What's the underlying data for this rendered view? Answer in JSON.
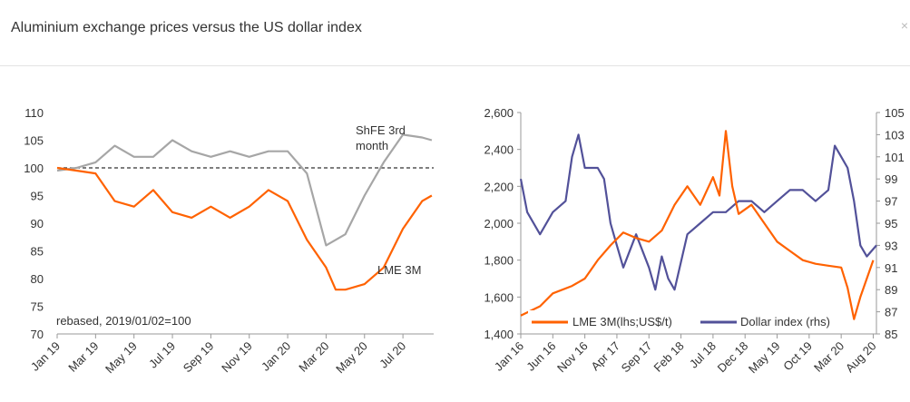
{
  "page": {
    "title": "Aluminium exchange prices versus the US dollar index",
    "close_label": "×"
  },
  "chart_data": [
    {
      "type": "line",
      "title": "",
      "x_tick_labels": [
        "Jan 19",
        "Mar 19",
        "May 19",
        "Jul 19",
        "Sep 19",
        "Nov 19",
        "Jan 20",
        "Mar 20",
        "May 20",
        "Jul 20"
      ],
      "x_range": [
        0,
        19.6
      ],
      "ylim": [
        70,
        110
      ],
      "y_ticks": [
        70,
        75,
        80,
        85,
        90,
        95,
        100,
        105,
        110
      ],
      "annotation": "rebased, 2019/01/02=100",
      "reference_line": 100,
      "series": [
        {
          "name": "ShFE 3rd month",
          "color": "#a6a6a6",
          "label_line1": "ShFE 3rd",
          "label_line2": "month",
          "points": [
            [
              0,
              99.5
            ],
            [
              1,
              100
            ],
            [
              2,
              101
            ],
            [
              3,
              104
            ],
            [
              4,
              102
            ],
            [
              5,
              102
            ],
            [
              6,
              105
            ],
            [
              7,
              103
            ],
            [
              8,
              102
            ],
            [
              9,
              103
            ],
            [
              10,
              102
            ],
            [
              11,
              103
            ],
            [
              12,
              103
            ],
            [
              13,
              99
            ],
            [
              14,
              86
            ],
            [
              15,
              88
            ],
            [
              16,
              95
            ],
            [
              17,
              101
            ],
            [
              18,
              106
            ],
            [
              19,
              105.5
            ],
            [
              19.5,
              105
            ]
          ]
        },
        {
          "name": "LME 3M",
          "color": "#ff6200",
          "label": "LME 3M",
          "points": [
            [
              0,
              100
            ],
            [
              1,
              99.5
            ],
            [
              2,
              99
            ],
            [
              3,
              94
            ],
            [
              4,
              93
            ],
            [
              5,
              96
            ],
            [
              6,
              92
            ],
            [
              7,
              91
            ],
            [
              8,
              93
            ],
            [
              9,
              91
            ],
            [
              10,
              93
            ],
            [
              11,
              96
            ],
            [
              12,
              94
            ],
            [
              13,
              87
            ],
            [
              14,
              82
            ],
            [
              14.5,
              78
            ],
            [
              15,
              78
            ],
            [
              16,
              79
            ],
            [
              17,
              82
            ],
            [
              18,
              89
            ],
            [
              19,
              94
            ],
            [
              19.5,
              95
            ]
          ]
        }
      ]
    },
    {
      "type": "line",
      "title": "",
      "x_tick_labels": [
        "Jan 16",
        "Jun 16",
        "Nov 16",
        "Apr 17",
        "Sep 17",
        "Feb 18",
        "Jul 18",
        "Dec 18",
        "May 19",
        "Oct 19",
        "Mar 20",
        "Aug 20"
      ],
      "x_range": [
        0,
        55.5
      ],
      "ylim_left": [
        1400,
        2600
      ],
      "y_ticks_left": [
        "1,400",
        "1,600",
        "1,800",
        "2,000",
        "2,200",
        "2,400",
        "2,600"
      ],
      "y_tick_values_left": [
        1400,
        1600,
        1800,
        2000,
        2200,
        2400,
        2600
      ],
      "ylim_right": [
        85,
        105
      ],
      "y_ticks_right": [
        85,
        87,
        89,
        91,
        93,
        95,
        97,
        99,
        101,
        103,
        105
      ],
      "series": [
        {
          "name": "LME 3M(lhs;US$/t)",
          "axis": "left",
          "color": "#ff6200",
          "points": [
            [
              0,
              1500
            ],
            [
              3,
              1550
            ],
            [
              5,
              1620
            ],
            [
              8,
              1660
            ],
            [
              10,
              1700
            ],
            [
              12,
              1800
            ],
            [
              14,
              1880
            ],
            [
              16,
              1950
            ],
            [
              18,
              1920
            ],
            [
              20,
              1900
            ],
            [
              22,
              1960
            ],
            [
              24,
              2100
            ],
            [
              26,
              2200
            ],
            [
              28,
              2100
            ],
            [
              30,
              2250
            ],
            [
              31,
              2150
            ],
            [
              32,
              2500
            ],
            [
              33,
              2200
            ],
            [
              34,
              2050
            ],
            [
              36,
              2100
            ],
            [
              38,
              2000
            ],
            [
              40,
              1900
            ],
            [
              42,
              1850
            ],
            [
              44,
              1800
            ],
            [
              46,
              1780
            ],
            [
              48,
              1770
            ],
            [
              50,
              1760
            ],
            [
              51,
              1650
            ],
            [
              52,
              1480
            ],
            [
              53,
              1600
            ],
            [
              55,
              1800
            ]
          ]
        },
        {
          "name": "Dollar index (rhs)",
          "axis": "right",
          "color": "#525199",
          "points": [
            [
              0,
              99
            ],
            [
              1,
              96
            ],
            [
              3,
              94
            ],
            [
              5,
              96
            ],
            [
              7,
              97
            ],
            [
              8,
              101
            ],
            [
              9,
              103
            ],
            [
              10,
              100
            ],
            [
              12,
              100
            ],
            [
              13,
              99
            ],
            [
              14,
              95
            ],
            [
              15,
              93
            ],
            [
              16,
              91
            ],
            [
              18,
              94
            ],
            [
              20,
              91
            ],
            [
              21,
              89
            ],
            [
              22,
              92
            ],
            [
              23,
              90
            ],
            [
              24,
              89
            ],
            [
              26,
              94
            ],
            [
              28,
              95
            ],
            [
              30,
              96
            ],
            [
              32,
              96
            ],
            [
              34,
              97
            ],
            [
              36,
              97
            ],
            [
              38,
              96
            ],
            [
              40,
              97
            ],
            [
              42,
              98
            ],
            [
              44,
              98
            ],
            [
              46,
              97
            ],
            [
              48,
              98
            ],
            [
              49,
              102
            ],
            [
              50,
              101
            ],
            [
              51,
              100
            ],
            [
              52,
              97
            ],
            [
              53,
              93
            ],
            [
              54,
              92
            ],
            [
              55.5,
              93
            ]
          ]
        }
      ]
    }
  ]
}
